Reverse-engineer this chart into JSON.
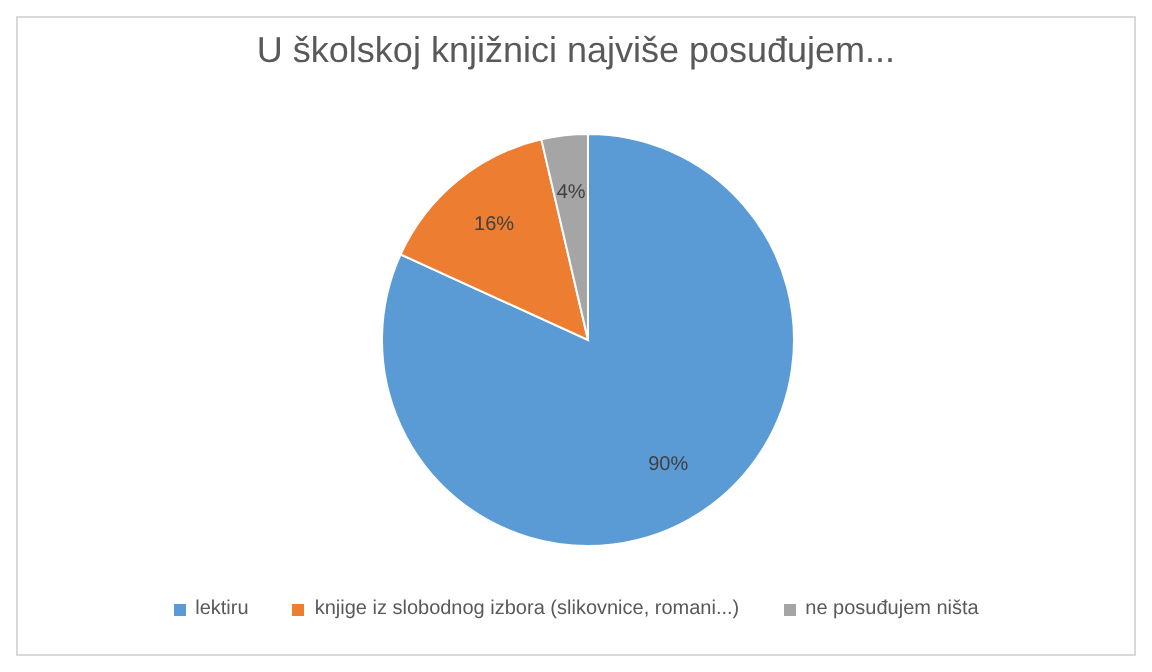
{
  "chart_data": {
    "type": "pie",
    "title": "U školskoj knjižnici najviše posuđujem...",
    "categories": [
      "lektiru",
      "knjige iz slobodnog izbora (slikovnice, romani...)",
      "ne posuđujem ništa"
    ],
    "values": [
      90,
      16,
      4
    ],
    "colors": [
      "#5b9bd5",
      "#ed7d31",
      "#a5a5a5"
    ],
    "value_labels": [
      "90%",
      "16%",
      "4%"
    ],
    "legend": "bottom"
  }
}
